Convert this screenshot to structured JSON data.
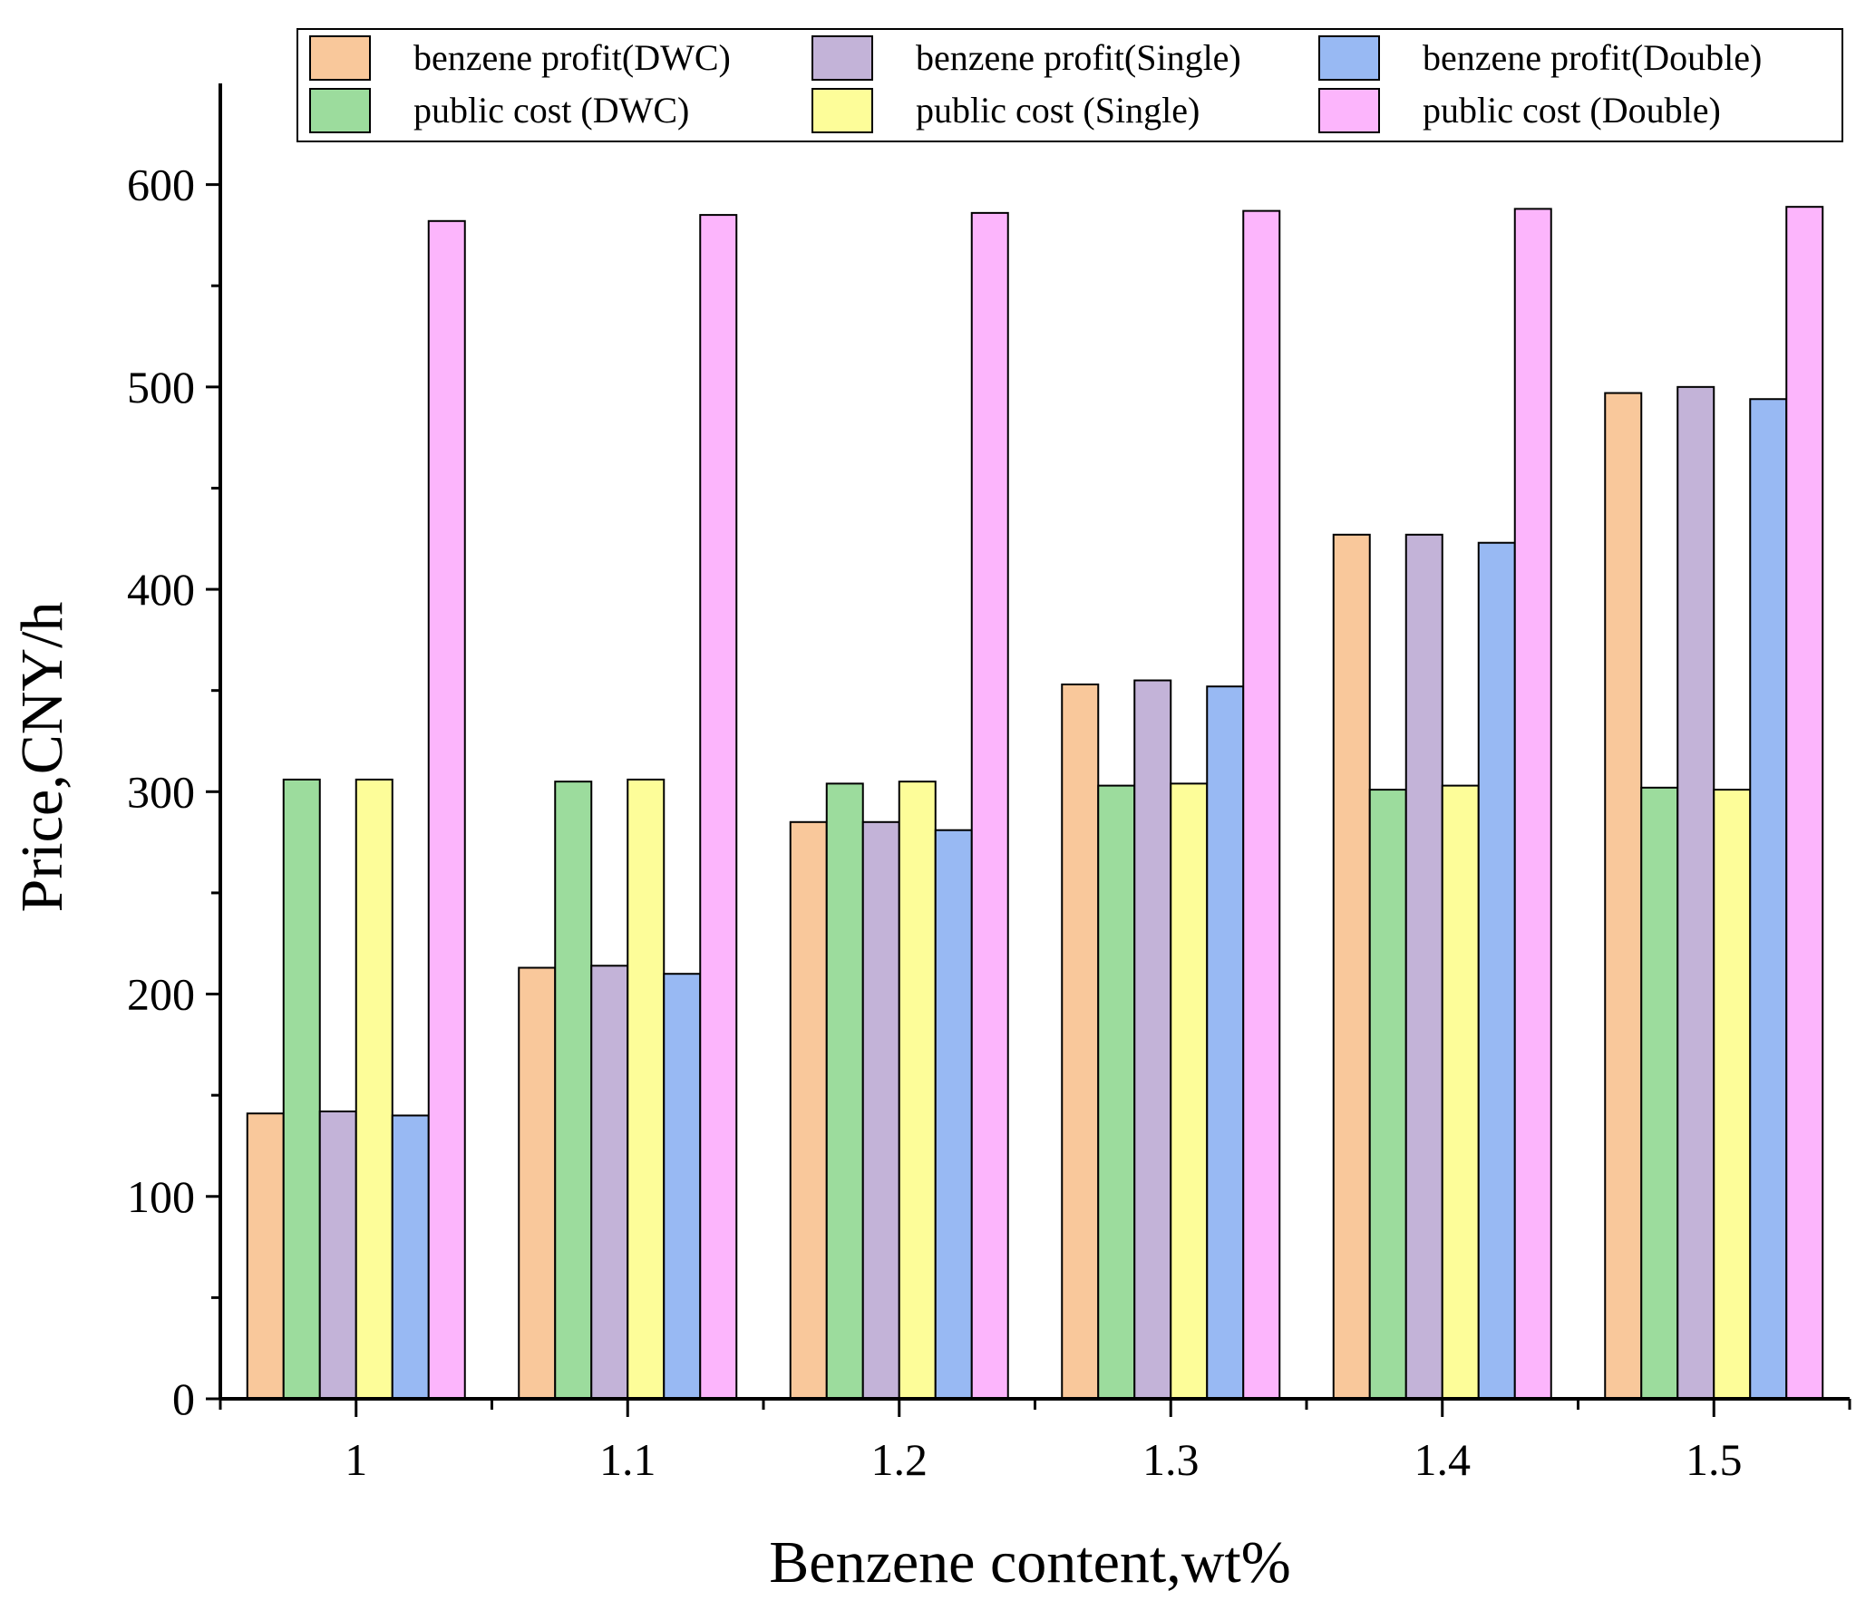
{
  "chart_data": {
    "type": "bar",
    "title": "",
    "xlabel": "Benzene content,wt%",
    "ylabel": "Price,CNY/h",
    "ylim": [
      0,
      650
    ],
    "yticks": [
      "0",
      "100",
      "200",
      "300",
      "400",
      "500",
      "600"
    ],
    "categories": [
      "1",
      "1.1",
      "1.2",
      "1.3",
      "1.4",
      "1.5"
    ],
    "legend_position": "top-right",
    "series": [
      {
        "name": "benzene profit(DWC)",
        "color": "#f9c89b",
        "values": [
          141,
          213,
          285,
          353,
          427,
          497
        ]
      },
      {
        "name": "public cost (DWC)",
        "color": "#9cdc9d",
        "values": [
          306,
          305,
          304,
          303,
          301,
          302
        ]
      },
      {
        "name": "benzene profit(Single)",
        "color": "#c3b3d8",
        "values": [
          142,
          214,
          285,
          355,
          427,
          500
        ]
      },
      {
        "name": "public cost (Single)",
        "color": "#fdfd99",
        "values": [
          306,
          306,
          305,
          304,
          303,
          301
        ]
      },
      {
        "name": "benzene profit(Double)",
        "color": "#98b9f3",
        "values": [
          140,
          210,
          281,
          352,
          423,
          494
        ]
      },
      {
        "name": "public cost (Double)",
        "color": "#fcb5fc",
        "values": [
          582,
          585,
          586,
          587,
          588,
          589
        ]
      }
    ],
    "legend": [
      {
        "label": "benzene profit(DWC)",
        "color": "#f9c89b"
      },
      {
        "label": "benzene profit(Single)",
        "color": "#c3b3d8"
      },
      {
        "label": "benzene profit(Double)",
        "color": "#98b9f3"
      },
      {
        "label": "public cost (DWC)",
        "color": "#9cdc9d"
      },
      {
        "label": "public cost (Single)",
        "color": "#fdfd99"
      },
      {
        "label": "public cost (Double)",
        "color": "#fcb5fc"
      }
    ]
  }
}
